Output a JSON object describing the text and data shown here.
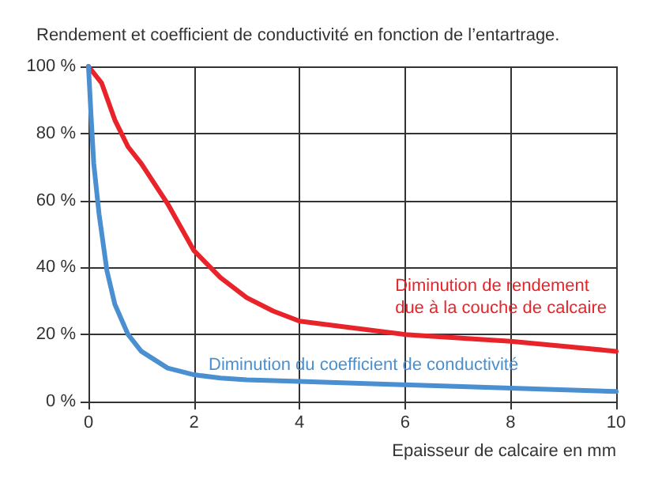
{
  "chart_data": {
    "type": "line",
    "title": "Rendement et coefficient de conductivité en fonction de l’entartrage.",
    "xlabel": "Epaisseur de calcaire en mm",
    "xlim": [
      0,
      10
    ],
    "xticks": [
      0,
      2,
      4,
      6,
      8,
      10
    ],
    "ylim": [
      0,
      100
    ],
    "yticks": [
      {
        "value": 0,
        "label": "0 %"
      },
      {
        "value": 20,
        "label": "20 %"
      },
      {
        "value": 40,
        "label": "40 %"
      },
      {
        "value": 60,
        "label": "60 %"
      },
      {
        "value": 80,
        "label": "80 %"
      },
      {
        "value": 100,
        "label": "100 %"
      }
    ],
    "grid": true,
    "marker": "none",
    "line_style": "solid",
    "series": [
      {
        "color": "#e8242a",
        "x": [
          0,
          0.25,
          0.5,
          0.75,
          1,
          1.5,
          2,
          2.5,
          3,
          3.5,
          4,
          5,
          6,
          7,
          8,
          9,
          10
        ],
        "values": [
          100,
          95,
          84,
          76,
          71,
          59,
          45,
          37,
          31,
          27,
          24,
          22,
          20,
          19,
          18,
          16.5,
          15
        ]
      },
      {
        "color": "#4a90d0",
        "x": [
          0,
          0.05,
          0.1,
          0.2,
          0.35,
          0.5,
          0.75,
          1,
          1.5,
          2,
          2.5,
          3,
          4,
          6,
          8,
          10
        ],
        "values": [
          100,
          85,
          71,
          56,
          39,
          29,
          20,
          15,
          10,
          8,
          7,
          6.5,
          6,
          5,
          4,
          3
        ]
      }
    ],
    "annotations": [
      "Diminution de rendement\ndue à la couche de calcaire",
      "Diminution du coefficient de conductivité"
    ]
  }
}
